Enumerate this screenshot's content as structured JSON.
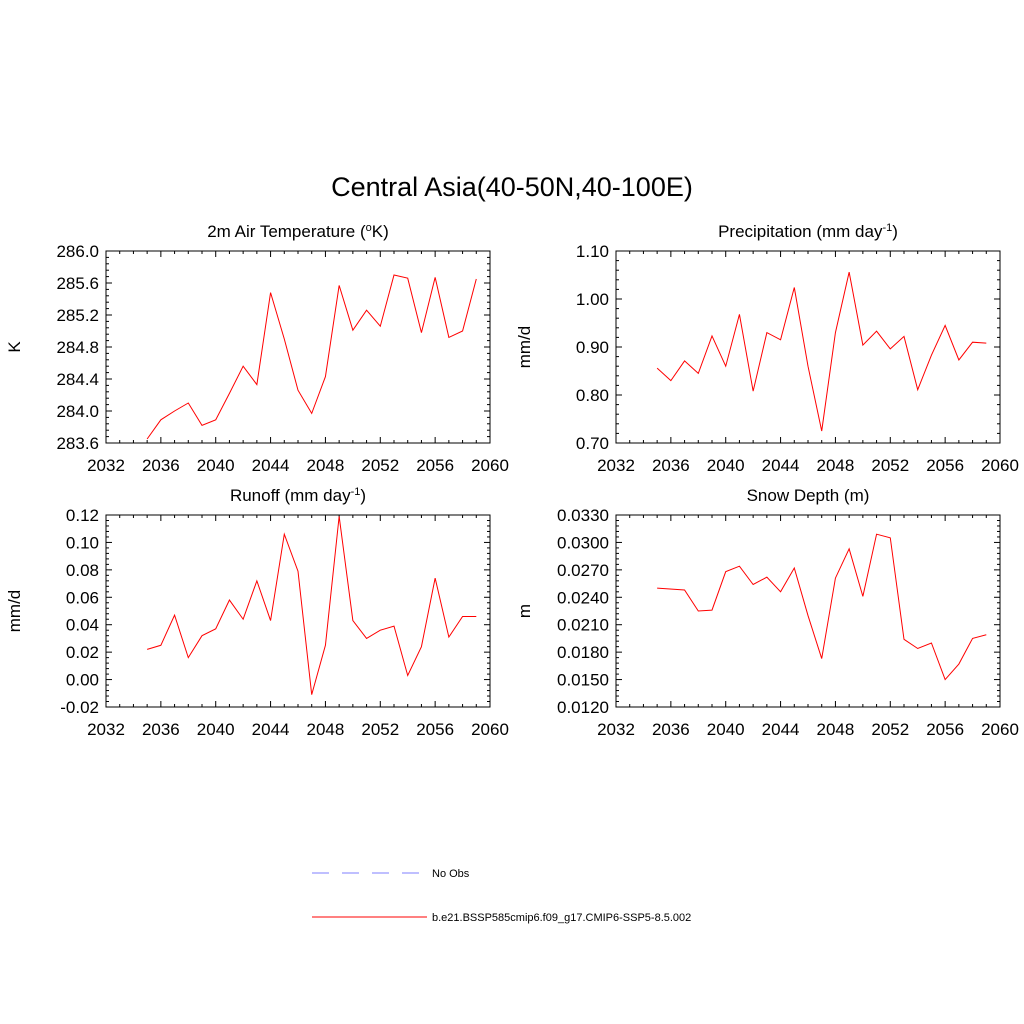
{
  "figure": {
    "title": "Central Asia(40-50N,40-100E)",
    "series_color": "#ff0000",
    "obs_color": "#9999ff"
  },
  "legend": {
    "obs_label": "No Obs",
    "model_label": "b.e21.BSSP585cmip6.f09_g17.CMIP6-SSP5-8.5.002"
  },
  "chart_data": [
    {
      "type": "line",
      "title": "2m Air Temperature (",
      "title_sup_prefix": "o",
      "title_suffix": "K)",
      "ylabel": "K",
      "xlim": [
        2032,
        2060
      ],
      "ylim": [
        283.6,
        286.0
      ],
      "xticks": [
        "2032",
        "2036",
        "2040",
        "2044",
        "2048",
        "2052",
        "2056",
        "2060"
      ],
      "yticks": [
        "283.6",
        "284.0",
        "284.4",
        "284.8",
        "285.2",
        "285.6",
        "286.0"
      ],
      "x": [
        2035,
        2036,
        2037,
        2038,
        2039,
        2040,
        2041,
        2042,
        2043,
        2044,
        2045,
        2046,
        2047,
        2048,
        2049,
        2050,
        2051,
        2052,
        2053,
        2054,
        2055,
        2056,
        2057,
        2058,
        2059
      ],
      "series": [
        {
          "name": "b.e21.BSSP585cmip6.f09_g17.CMIP6-SSP5-8.5.002",
          "values": [
            283.65,
            283.89,
            284.0,
            284.1,
            283.82,
            283.89,
            284.22,
            284.56,
            284.33,
            285.48,
            284.9,
            284.26,
            283.97,
            284.43,
            285.57,
            285.01,
            285.26,
            285.06,
            285.7,
            285.66,
            284.98,
            285.67,
            284.92,
            285.0,
            285.65
          ]
        }
      ]
    },
    {
      "type": "line",
      "title": "Precipitation (mm day",
      "title_sup": "-1",
      "title_suffix": ")",
      "ylabel": "mm/d",
      "xlim": [
        2032,
        2060
      ],
      "ylim": [
        0.7,
        1.1
      ],
      "xticks": [
        "2032",
        "2036",
        "2040",
        "2044",
        "2048",
        "2052",
        "2056",
        "2060"
      ],
      "yticks": [
        "0.70",
        "0.80",
        "0.90",
        "1.00",
        "1.10"
      ],
      "x": [
        2035,
        2036,
        2037,
        2038,
        2039,
        2040,
        2041,
        2042,
        2043,
        2044,
        2045,
        2046,
        2047,
        2048,
        2049,
        2050,
        2051,
        2052,
        2053,
        2054,
        2055,
        2056,
        2057,
        2058,
        2059
      ],
      "series": [
        {
          "name": "b.e21.BSSP585cmip6.f09_g17.CMIP6-SSP5-8.5.002",
          "values": [
            0.856,
            0.83,
            0.871,
            0.845,
            0.923,
            0.86,
            0.968,
            0.808,
            0.93,
            0.915,
            1.024,
            0.86,
            0.725,
            0.93,
            1.056,
            0.904,
            0.933,
            0.896,
            0.922,
            0.811,
            0.883,
            0.945,
            0.873,
            0.91,
            0.908
          ]
        }
      ]
    },
    {
      "type": "line",
      "title": "Runoff (mm day",
      "title_sup": "-1",
      "title_suffix": ")",
      "ylabel": "mm/d",
      "xlim": [
        2032,
        2060
      ],
      "ylim": [
        -0.02,
        0.12
      ],
      "xticks": [
        "2032",
        "2036",
        "2040",
        "2044",
        "2048",
        "2052",
        "2056",
        "2060"
      ],
      "yticks": [
        "-0.02",
        "0.00",
        "0.02",
        "0.04",
        "0.06",
        "0.08",
        "0.10",
        "0.12"
      ],
      "x": [
        2035,
        2036,
        2037,
        2038,
        2039,
        2040,
        2041,
        2042,
        2043,
        2044,
        2045,
        2046,
        2047,
        2048,
        2049,
        2050,
        2051,
        2052,
        2053,
        2054,
        2055,
        2056,
        2057,
        2058,
        2059
      ],
      "series": [
        {
          "name": "b.e21.BSSP585cmip6.f09_g17.CMIP6-SSP5-8.5.002",
          "values": [
            0.022,
            0.025,
            0.047,
            0.016,
            0.032,
            0.037,
            0.058,
            0.044,
            0.072,
            0.043,
            0.106,
            0.079,
            -0.011,
            0.025,
            0.119,
            0.043,
            0.03,
            0.036,
            0.039,
            0.003,
            0.024,
            0.074,
            0.031,
            0.046,
            0.046
          ]
        }
      ]
    },
    {
      "type": "line",
      "title": "Snow Depth (m)",
      "ylabel": "m",
      "xlim": [
        2032,
        2060
      ],
      "ylim": [
        0.012,
        0.033
      ],
      "xticks": [
        "2032",
        "2036",
        "2040",
        "2044",
        "2048",
        "2052",
        "2056",
        "2060"
      ],
      "yticks": [
        "0.0120",
        "0.0150",
        "0.0180",
        "0.0210",
        "0.0240",
        "0.0270",
        "0.0300",
        "0.0330"
      ],
      "x": [
        2035,
        2037,
        2038,
        2039,
        2040,
        2041,
        2042,
        2043,
        2044,
        2045,
        2046,
        2047,
        2048,
        2049,
        2050,
        2051,
        2052,
        2053,
        2054,
        2055,
        2056,
        2057,
        2058,
        2059
      ],
      "series": [
        {
          "name": "b.e21.BSSP585cmip6.f09_g17.CMIP6-SSP5-8.5.002",
          "values": [
            0.025,
            0.0248,
            0.0225,
            0.0226,
            0.0268,
            0.0274,
            0.0254,
            0.0262,
            0.0246,
            0.0272,
            0.022,
            0.0173,
            0.0261,
            0.0293,
            0.0241,
            0.0309,
            0.0305,
            0.0194,
            0.0184,
            0.019,
            0.015,
            0.0167,
            0.0195,
            0.0199
          ]
        }
      ]
    }
  ]
}
